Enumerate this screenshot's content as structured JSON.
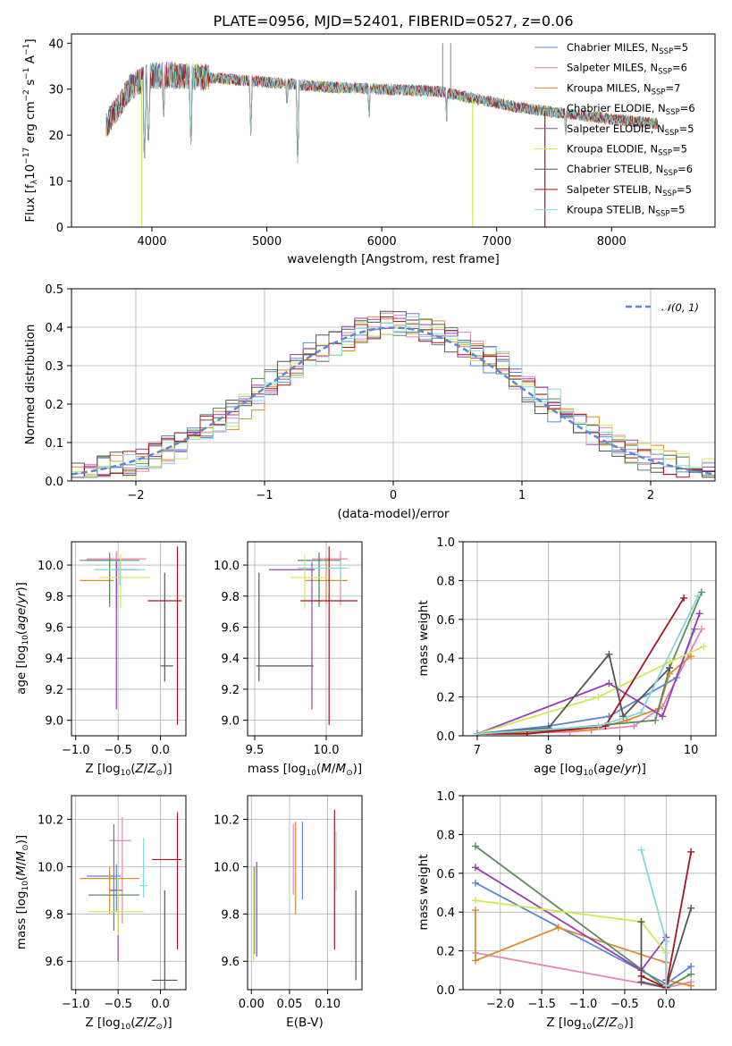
{
  "figure_title": "PLATE=0956, MJD=52401, FIBERID=0527, z=0.06",
  "palette": [
    "#5b87d6",
    "#e884b8",
    "#e08a2c",
    "#5d8c5d",
    "#9b3db5",
    "#cfe854",
    "#555555",
    "#a8141f",
    "#82d8dc"
  ],
  "legend": [
    {
      "base": "Chabrier MILES, N",
      "sub": "SSP",
      "eq": "=5"
    },
    {
      "base": "Salpeter MILES, N",
      "sub": "SSP",
      "eq": "=6"
    },
    {
      "base": "Kroupa MILES, N",
      "sub": "SSP",
      "eq": "=7"
    },
    {
      "base": "Chabrier ELODIE, N",
      "sub": "SSP",
      "eq": "=6"
    },
    {
      "base": "Salpeter ELODIE, N",
      "sub": "SSP",
      "eq": "=5"
    },
    {
      "base": "Kroupa ELODIE, N",
      "sub": "SSP",
      "eq": "=5"
    },
    {
      "base": "Chabrier STELIB, N",
      "sub": "SSP",
      "eq": "=6"
    },
    {
      "base": "Salpeter STELIB, N",
      "sub": "SSP",
      "eq": "=5"
    },
    {
      "base": "Kroupa STELIB, N",
      "sub": "SSP",
      "eq": "=5"
    }
  ],
  "chart_data": [
    {
      "id": "spectrum",
      "type": "line",
      "xlabel": "wavelength [Angstrom, rest frame]",
      "ylabel": "Flux [f_λ 10^-17 erg cm^-2 s^-1 A^-1]",
      "xlim": [
        3300,
        8900
      ],
      "ylim": [
        0,
        42
      ],
      "xticks": [
        "4000",
        "5000",
        "6000",
        "7000",
        "8000"
      ],
      "yticks": [
        "0",
        "10",
        "20",
        "30",
        "40"
      ],
      "grid": false,
      "legend_position": "top-right",
      "continuum": [
        [
          3600,
          22
        ],
        [
          3700,
          26
        ],
        [
          3800,
          30
        ],
        [
          3900,
          32
        ],
        [
          4000,
          33
        ],
        [
          4200,
          33
        ],
        [
          4500,
          32.5
        ],
        [
          5000,
          31.5
        ],
        [
          5500,
          30.5
        ],
        [
          6000,
          30
        ],
        [
          6500,
          29.5
        ],
        [
          7000,
          27
        ],
        [
          7200,
          26
        ],
        [
          7500,
          25
        ],
        [
          8000,
          23.5
        ],
        [
          8400,
          22.5
        ]
      ],
      "absorption_lines": [
        [
          3934,
          13
        ],
        [
          3969,
          16
        ],
        [
          4102,
          22
        ],
        [
          4340,
          16
        ],
        [
          4861,
          19
        ],
        [
          5175,
          24
        ],
        [
          5268,
          14
        ],
        [
          5890,
          22
        ],
        [
          6563,
          22
        ],
        [
          7600,
          18
        ]
      ],
      "glitches": [
        [
          3910,
          0,
          "#cfe854"
        ],
        [
          6790,
          0,
          "#cfe854"
        ],
        [
          7420,
          0,
          "#a8141f"
        ],
        [
          6530,
          40,
          "#999999"
        ],
        [
          6600,
          40,
          "#999999"
        ]
      ]
    },
    {
      "id": "residuals",
      "type": "histogram",
      "xlabel": "(data-model)/error",
      "ylabel": "Normed distribution",
      "xlim": [
        -2.5,
        2.5
      ],
      "ylim": [
        0,
        0.5
      ],
      "xticks": [
        "−2",
        "−1",
        "0",
        "1",
        "2"
      ],
      "yticks": [
        "0.0",
        "0.1",
        "0.2",
        "0.3",
        "0.4",
        "0.5"
      ],
      "grid": true,
      "legend_position": "top-right",
      "legend": "𝒩(0,1)",
      "bin_width": 0.1
    },
    {
      "id": "age_vs_Z",
      "type": "errorbar",
      "xlabel": "Z [log10(Z/Z⊙)]",
      "ylabel": "age  [log10(age/yr)]",
      "xlim": [
        -1.05,
        0.3
      ],
      "ylim": [
        8.9,
        10.15
      ],
      "xticks": [
        "−1.0",
        "−0.5",
        "0.0"
      ],
      "yticks": [
        "9.0",
        "9.2",
        "9.4",
        "9.6",
        "9.8",
        "10.0"
      ],
      "grid": true,
      "points": [
        {
          "x": -0.52,
          "xerr": [
            0.35,
            0.05
          ],
          "y": 10.03,
          "yerr": [
            0.3,
            0.05
          ]
        },
        {
          "x": -0.52,
          "xerr": [
            0.35,
            0.35
          ],
          "y": 10.04,
          "yerr": [
            0.3,
            0.05
          ]
        },
        {
          "x": -0.6,
          "xerr": [
            0.35,
            0.05
          ],
          "y": 9.9,
          "yerr": [
            0.15,
            0.15
          ]
        },
        {
          "x": -0.6,
          "xerr": [
            0.35,
            0.35
          ],
          "y": 10.03,
          "yerr": [
            0.3,
            0.05
          ]
        },
        {
          "x": -0.52,
          "xerr": [
            0.02,
            0.25
          ],
          "y": 9.97,
          "yerr": [
            0.9,
            0.05
          ]
        },
        {
          "x": -0.47,
          "xerr": [
            0.25,
            0.35
          ],
          "y": 9.92,
          "yerr": [
            0.2,
            0.15
          ]
        },
        {
          "x": 0.05,
          "xerr": [
            0.05,
            0.1
          ],
          "y": 9.35,
          "yerr": [
            0.1,
            0.6
          ]
        },
        {
          "x": 0.2,
          "xerr": [
            0.35,
            0.05
          ],
          "y": 9.77,
          "yerr": [
            0.8,
            0.35
          ]
        },
        {
          "x": -0.48,
          "xerr": [
            0.3,
            0.3
          ],
          "y": 9.97,
          "yerr": [
            0.1,
            0.05
          ]
        }
      ]
    },
    {
      "id": "age_vs_mass",
      "type": "errorbar",
      "xlabel": "mass [log10(M/M⊙)]",
      "ylabel": "",
      "xlim": [
        9.45,
        10.25
      ],
      "ylim": [
        8.9,
        10.15
      ],
      "xticks": [
        "9.5",
        "10.0"
      ],
      "yticks": [
        "9.0",
        "9.2",
        "9.4",
        "9.6",
        "9.8",
        "10.0"
      ],
      "grid": true,
      "points": [
        {
          "x": 9.95,
          "xerr": [
            0.15,
            0.02
          ],
          "y": 10.03,
          "yerr": [
            0.3,
            0.05
          ]
        },
        {
          "x": 10.1,
          "xerr": [
            0.2,
            0.05
          ],
          "y": 10.04,
          "yerr": [
            0.3,
            0.05
          ]
        },
        {
          "x": 10.0,
          "xerr": [
            0.15,
            0.15
          ],
          "y": 9.9,
          "yerr": [
            0.15,
            0.15
          ]
        },
        {
          "x": 9.95,
          "xerr": [
            0.15,
            0.15
          ],
          "y": 10.03,
          "yerr": [
            0.3,
            0.05
          ]
        },
        {
          "x": 9.9,
          "xerr": [
            0.3,
            0.02
          ],
          "y": 9.97,
          "yerr": [
            0.9,
            0.05
          ]
        },
        {
          "x": 9.85,
          "xerr": [
            0.1,
            0.15
          ],
          "y": 9.92,
          "yerr": [
            0.2,
            0.15
          ]
        },
        {
          "x": 9.53,
          "xerr": [
            0.02,
            0.38
          ],
          "y": 9.35,
          "yerr": [
            0.1,
            0.6
          ]
        },
        {
          "x": 10.02,
          "xerr": [
            0.2,
            0.2
          ],
          "y": 9.77,
          "yerr": [
            0.8,
            0.35
          ]
        },
        {
          "x": 10.1,
          "xerr": [
            0.3,
            0.05
          ],
          "y": 9.98,
          "yerr": [
            0.1,
            0.05
          ]
        }
      ]
    },
    {
      "id": "weight_vs_age",
      "type": "line",
      "xlabel": "age  [log10(age/yr)]",
      "ylabel": "mass weight",
      "xlim": [
        6.8,
        10.35
      ],
      "ylim": [
        0,
        1
      ],
      "xticks": [
        "7",
        "8",
        "9",
        "10"
      ],
      "yticks": [
        "0.0",
        "0.2",
        "0.4",
        "0.6",
        "0.8",
        "1.0"
      ],
      "grid": true,
      "series": [
        {
          "x": [
            7.0,
            8.0,
            8.85,
            9.8,
            10.05
          ],
          "y": [
            0.01,
            0.05,
            0.1,
            0.3,
            0.55
          ]
        },
        {
          "x": [
            7.0,
            8.3,
            9.2,
            9.6,
            10.15
          ],
          "y": [
            0.01,
            0.02,
            0.05,
            0.15,
            0.55
          ]
        },
        {
          "x": [
            7.0,
            8.6,
            9.1,
            9.55,
            9.7,
            10.0
          ],
          "y": [
            0.01,
            0.03,
            0.08,
            0.14,
            0.32,
            0.41
          ]
        },
        {
          "x": [
            7.0,
            8.0,
            9.5,
            9.7,
            10.15
          ],
          "y": [
            0.01,
            0.03,
            0.08,
            0.35,
            0.74
          ]
        },
        {
          "x": [
            7.0,
            8.85,
            9.6,
            10.12
          ],
          "y": [
            0.01,
            0.27,
            0.1,
            0.63
          ]
        },
        {
          "x": [
            7.0,
            8.7,
            9.7,
            10.18
          ],
          "y": [
            0.01,
            0.2,
            0.38,
            0.46
          ]
        },
        {
          "x": [
            7.0,
            8.0,
            8.85,
            9.05,
            9.7
          ],
          "y": [
            0.01,
            0.04,
            0.42,
            0.1,
            0.35
          ]
        },
        {
          "x": [
            7.0,
            7.7,
            8.8,
            9.9
          ],
          "y": [
            0.01,
            0.01,
            0.05,
            0.71
          ]
        },
        {
          "x": [
            7.0,
            8.7,
            9.3,
            10.1
          ],
          "y": [
            0.01,
            0.05,
            0.12,
            0.72
          ]
        }
      ]
    },
    {
      "id": "mass_vs_Z",
      "type": "errorbar",
      "xlabel": "Z [log10(Z/Z⊙)]",
      "ylabel": "mass [log10(M/M⊙)]",
      "xlim": [
        -1.05,
        0.3
      ],
      "ylim": [
        9.48,
        10.3
      ],
      "xticks": [
        "−1.0",
        "−0.5",
        "0.0"
      ],
      "yticks": [
        "9.6",
        "9.8",
        "10.0",
        "10.2"
      ],
      "grid": true,
      "points": [
        {
          "x": -0.52,
          "xerr": [
            0.35,
            0.05
          ],
          "y": 9.96,
          "yerr": [
            0.15,
            0.05
          ]
        },
        {
          "x": -0.45,
          "xerr": [
            0.15,
            0.1
          ],
          "y": 10.11,
          "yerr": [
            0.35,
            0.1
          ]
        },
        {
          "x": -0.6,
          "xerr": [
            0.35,
            0.35
          ],
          "y": 9.95,
          "yerr": [
            0.15,
            0.05
          ]
        },
        {
          "x": -0.55,
          "xerr": [
            0.3,
            0.3
          ],
          "y": 9.88,
          "yerr": [
            0.15,
            0.3
          ]
        },
        {
          "x": -0.5,
          "xerr": [
            0.1,
            0.05
          ],
          "y": 9.9,
          "yerr": [
            0.3,
            0.05
          ]
        },
        {
          "x": -0.5,
          "xerr": [
            0.35,
            0.3
          ],
          "y": 9.81,
          "yerr": [
            0.1,
            0.15
          ]
        },
        {
          "x": 0.05,
          "xerr": [
            0.15,
            0.15
          ],
          "y": 9.52,
          "yerr": [
            0.05,
            0.38
          ]
        },
        {
          "x": 0.2,
          "xerr": [
            0.3,
            0.05
          ],
          "y": 10.03,
          "yerr": [
            0.38,
            0.2
          ]
        },
        {
          "x": -0.2,
          "xerr": [
            0.05,
            0.05
          ],
          "y": 9.92,
          "yerr": [
            0.05,
            0.2
          ]
        }
      ]
    },
    {
      "id": "mass_vs_EBV",
      "type": "errorbar",
      "xlabel": "E(B-V)",
      "ylabel": "",
      "xlim": [
        -0.005,
        0.145
      ],
      "ylim": [
        9.48,
        10.3
      ],
      "xticks": [
        "0.00",
        "0.05",
        "0.10"
      ],
      "yticks": [
        "9.6",
        "9.8",
        "10.0",
        "10.2"
      ],
      "grid": true,
      "points": [
        {
          "x": 0.067,
          "xerr": [
            0,
            0
          ],
          "y": 9.96,
          "yerr": [
            0.1,
            0.23
          ]
        },
        {
          "x": 0.055,
          "xerr": [
            0,
            0
          ],
          "y": 9.98,
          "yerr": [
            0.1,
            0.2
          ]
        },
        {
          "x": 0.058,
          "xerr": [
            0,
            0
          ],
          "y": 9.95,
          "yerr": [
            0.15,
            0.24
          ]
        },
        {
          "x": 0.004,
          "xerr": [
            0,
            0
          ],
          "y": 9.85,
          "yerr": [
            0.22,
            0.15
          ]
        },
        {
          "x": 0.007,
          "xerr": [
            0,
            0
          ],
          "y": 9.82,
          "yerr": [
            0.2,
            0.2
          ]
        },
        {
          "x": 0.003,
          "xerr": [
            0,
            0
          ],
          "y": 9.8,
          "yerr": [
            0.2,
            0.2
          ]
        },
        {
          "x": 0.137,
          "xerr": [
            0,
            0
          ],
          "y": 9.72,
          "yerr": [
            0.2,
            0.18
          ]
        },
        {
          "x": 0.109,
          "xerr": [
            0,
            0
          ],
          "y": 9.95,
          "yerr": [
            0.3,
            0.29
          ]
        },
        {
          "x": 0.111,
          "xerr": [
            0,
            0
          ],
          "y": 9.95,
          "yerr": [
            0.05,
            0.2
          ]
        }
      ]
    },
    {
      "id": "weight_vs_Z",
      "type": "line",
      "xlabel": "Z [log10(Z/Z⊙)]",
      "ylabel": "mass weight",
      "xlim": [
        -2.45,
        0.6
      ],
      "ylim": [
        0,
        1
      ],
      "xticks": [
        "−2.0",
        "−1.5",
        "−1.0",
        "−0.5",
        "0.0"
      ],
      "yticks": [
        "0.0",
        "0.2",
        "0.4",
        "0.6",
        "0.8",
        "1.0"
      ],
      "grid": true,
      "series": [
        {
          "x": [
            -2.3,
            0.0,
            0.3
          ],
          "y": [
            0.55,
            0.03,
            0.12
          ]
        },
        {
          "x": [
            -2.3,
            0.0,
            0.3
          ],
          "y": [
            0.19,
            0.01,
            0.04
          ]
        },
        {
          "x": [
            -2.3,
            -2.3,
            -1.3,
            0.0,
            0.0,
            0.3
          ],
          "y": [
            0.41,
            0.15,
            0.32,
            0.14,
            0.05,
            0.02
          ]
        },
        {
          "x": [
            -2.3,
            0.0,
            0.3
          ],
          "y": [
            0.74,
            0.01,
            0.08
          ]
        },
        {
          "x": [
            -2.3,
            -0.3,
            0.0,
            0.0
          ],
          "y": [
            0.63,
            0.1,
            0.27,
            0.05
          ]
        },
        {
          "x": [
            -2.3,
            -0.3,
            0.0
          ],
          "y": [
            0.46,
            0.35,
            0.19
          ]
        },
        {
          "x": [
            -0.3,
            -0.3,
            0.0,
            0.3
          ],
          "y": [
            0.35,
            0.04,
            0.01,
            0.42
          ]
        },
        {
          "x": [
            -0.3,
            0.0,
            0.3
          ],
          "y": [
            0.07,
            0.01,
            0.71
          ]
        },
        {
          "x": [
            -0.3,
            0.0,
            0.0
          ],
          "y": [
            0.72,
            0.25,
            0.02
          ]
        }
      ]
    }
  ]
}
